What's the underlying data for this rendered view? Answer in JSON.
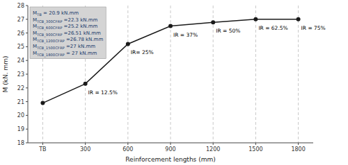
{
  "chart_data": {
    "type": "line",
    "xlabel": "Reinforcement lengths (mm)",
    "ylabel": "M (kN. mm)",
    "categories": [
      "TB",
      "300",
      "600",
      "900",
      "1200",
      "1500",
      "1800"
    ],
    "values": [
      20.9,
      22.3,
      25.2,
      26.51,
      26.78,
      27.0,
      27.0
    ],
    "color": "#1a1a1a",
    "marker": "circle",
    "ylim": [
      18,
      28
    ],
    "yticks": [
      18,
      19,
      20,
      21,
      22,
      23,
      24,
      25,
      26,
      27,
      28
    ],
    "grid": "x",
    "annotations": [
      {
        "text": "IR = 12.5%",
        "x": "300",
        "y": 22.3
      },
      {
        "text": "IR= 25%",
        "x": "600",
        "y": 25.2
      },
      {
        "text": "IR = 37%",
        "x": "900",
        "y": 26.51
      },
      {
        "text": "IR = 50%",
        "x": "1200",
        "y": 26.78
      },
      {
        "text": "IR = 62.5%",
        "x": "1500",
        "y": 27.0
      },
      {
        "text": "IR = 75%",
        "x": "1800",
        "y": 27.0
      }
    ],
    "text_box": [
      {
        "base": "M",
        "sub": "TB",
        "text": " = 20.9 kN.mm"
      },
      {
        "base": "M",
        "sub": "TCB_300CFRP",
        "text": " =22.3 kN.mm"
      },
      {
        "base": "M",
        "sub": "TCB_600CFRP",
        "text": " =25.2 kN.mm"
      },
      {
        "base": "M",
        "sub": "TCB_900CFRP",
        "text": " =26.51 kN.mm"
      },
      {
        "base": "M",
        "sub": "TCB_1200CFRP",
        "text": " =26.78 kN.mm"
      },
      {
        "base": "M",
        "sub": "TCB_1500CFRP",
        "text": " =27  kN.mm"
      },
      {
        "base": "M",
        "sub": "TCB_1800CFRP",
        "text": " = 27 kN.mm"
      }
    ]
  }
}
